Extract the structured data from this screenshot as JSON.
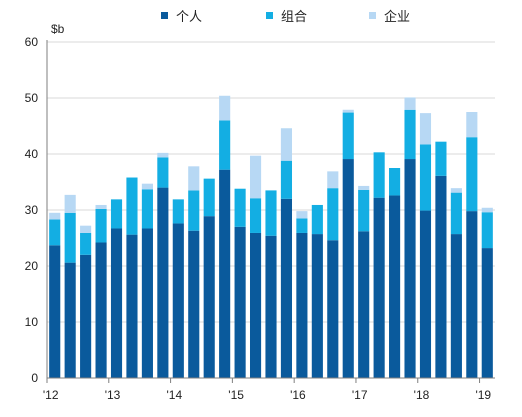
{
  "chart_data": {
    "type": "bar",
    "stacked": true,
    "unit_label": "$b",
    "ylim": [
      0,
      60
    ],
    "y_ticks": [
      "0",
      "10",
      "20",
      "30",
      "40",
      "50",
      "60"
    ],
    "x_tick_labels": [
      "'12",
      "'13",
      "'14",
      "'15",
      "'16",
      "'17",
      "'18",
      "'19"
    ],
    "x_tick_positions": [
      0,
      4,
      8,
      12,
      16,
      20,
      24,
      28
    ],
    "grid": true,
    "legend_position": "top",
    "colors": {
      "个人": "#0a5a9c",
      "组合": "#13aee3",
      "企业": "#b7d8f4"
    },
    "series": [
      {
        "name": "个人",
        "values": [
          23.7,
          20.6,
          22.0,
          24.2,
          26.7,
          25.6,
          26.7,
          34.0,
          27.6,
          26.3,
          28.9,
          37.2,
          27.0,
          25.9,
          25.4,
          32.0,
          25.9,
          25.7,
          24.6,
          39.1,
          26.2,
          32.2,
          32.6,
          39.1,
          29.9,
          36.1,
          25.7,
          29.8,
          23.2
        ]
      },
      {
        "name": "组合",
        "values": [
          4.6,
          8.9,
          3.9,
          6.0,
          5.2,
          10.2,
          7.0,
          5.4,
          4.3,
          7.2,
          6.7,
          8.8,
          6.8,
          6.2,
          8.1,
          6.8,
          2.6,
          5.2,
          9.3,
          8.3,
          7.4,
          8.1,
          4.9,
          8.8,
          11.8,
          6.1,
          7.4,
          13.2,
          6.4
        ]
      },
      {
        "name": "企业",
        "values": [
          1.2,
          3.2,
          1.3,
          0.7,
          0.0,
          0.0,
          1.0,
          0.8,
          0.0,
          4.3,
          0.0,
          4.4,
          0.0,
          7.6,
          0.0,
          5.8,
          1.3,
          0.0,
          3.0,
          0.5,
          0.7,
          0.0,
          0.0,
          2.2,
          5.6,
          0.0,
          0.8,
          4.5,
          0.8
        ]
      }
    ]
  }
}
